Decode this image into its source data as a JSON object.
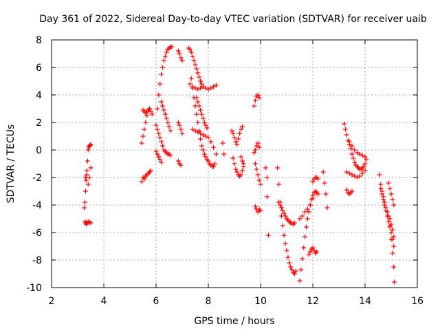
{
  "chart_data": {
    "type": "scatter",
    "title": "Day 361 of 2022, Sidereal Day-to-day VTEC variation (SDTVAR) for receiver uaib",
    "xlabel": "GPS time / hours",
    "ylabel": "SDTVAR / TECUs",
    "xlim": [
      2,
      16
    ],
    "ylim": [
      -10,
      8
    ],
    "xticks": [
      "2",
      "4",
      "6",
      "8",
      "10",
      "12",
      "14",
      "16"
    ],
    "yticks": [
      "-10",
      "-8",
      "-6",
      "-4",
      "-2",
      "0",
      "2",
      "4",
      "6",
      "8"
    ],
    "grid": true,
    "marker": "+",
    "color": "#ff0000",
    "series": [
      {
        "name": "s1",
        "x": [
          3.25,
          3.28,
          3.3,
          3.32,
          3.35,
          3.38,
          3.4,
          3.42,
          3.45,
          3.48,
          3.5
        ],
        "y": [
          -4.2,
          -3.8,
          -3.0,
          -2.2,
          -1.5,
          -0.8,
          0.0,
          0.2,
          0.3,
          0.35,
          0.4
        ]
      },
      {
        "name": "s2",
        "x": [
          3.28,
          3.3,
          3.33,
          3.36,
          3.4,
          3.45,
          3.5
        ],
        "y": [
          -5.2,
          -5.3,
          -5.4,
          -5.3,
          -5.2,
          -5.25,
          -5.3
        ]
      },
      {
        "name": "s3",
        "x": [
          3.3,
          3.35,
          3.4,
          3.45,
          3.5
        ],
        "y": [
          -2.0,
          -1.8,
          -2.5,
          -2.0,
          -1.3
        ]
      },
      {
        "name": "s4",
        "x": [
          5.45,
          5.5,
          5.55,
          5.6,
          5.65,
          5.7,
          5.75,
          5.8
        ],
        "y": [
          -2.3,
          -2.0,
          -2.1,
          -1.9,
          -1.8,
          -1.7,
          -1.6,
          -1.5
        ]
      },
      {
        "name": "s5",
        "x": [
          5.45,
          5.5,
          5.55,
          5.6,
          5.65,
          5.7,
          5.75
        ],
        "y": [
          0.5,
          1.0,
          1.5,
          2.0,
          2.5,
          2.8,
          3.0
        ]
      },
      {
        "name": "s6",
        "x": [
          5.5,
          5.55,
          5.6,
          5.65,
          5.7,
          5.75,
          5.8,
          5.85
        ],
        "y": [
          2.9,
          2.8,
          2.7,
          2.8,
          2.9,
          3.0,
          2.8,
          2.6
        ]
      },
      {
        "name": "s7",
        "x": [
          6.05,
          6.1,
          6.15,
          6.2,
          6.25,
          6.3,
          6.35,
          6.4,
          6.45,
          6.5,
          6.55,
          6.6
        ],
        "y": [
          3.0,
          4.0,
          4.8,
          5.5,
          6.0,
          6.5,
          6.8,
          7.1,
          7.3,
          7.4,
          7.5,
          7.5
        ]
      },
      {
        "name": "s8",
        "x": [
          6.0,
          6.05,
          6.1,
          6.15,
          6.2,
          6.25,
          6.3,
          6.35,
          6.4,
          6.45,
          6.5,
          6.55
        ],
        "y": [
          1.8,
          1.5,
          1.2,
          0.9,
          0.6,
          0.3,
          0.0,
          -0.1,
          -0.2,
          -0.3,
          -0.3,
          -0.4
        ]
      },
      {
        "name": "s9",
        "x": [
          6.2,
          6.25,
          6.3,
          6.35,
          6.4,
          6.45,
          6.5,
          6.55
        ],
        "y": [
          3.5,
          3.2,
          2.9,
          2.6,
          2.3,
          2.0,
          1.7,
          1.4
        ]
      },
      {
        "name": "s10",
        "x": [
          6.0,
          6.05,
          6.1,
          6.15,
          6.2
        ],
        "y": [
          -0.1,
          -0.3,
          -0.5,
          -0.7,
          -0.9
        ]
      },
      {
        "name": "s11",
        "x": [
          6.85,
          6.9,
          6.95,
          7.0
        ],
        "y": [
          7.2,
          7.0,
          6.7,
          6.5
        ]
      },
      {
        "name": "s12",
        "x": [
          6.85,
          6.9,
          6.95,
          7.0
        ],
        "y": [
          2.0,
          1.8,
          1.5,
          1.2
        ]
      },
      {
        "name": "s13",
        "x": [
          6.85,
          6.9,
          6.95
        ],
        "y": [
          -0.8,
          -1.0,
          -1.1
        ]
      },
      {
        "name": "s14",
        "x": [
          7.25,
          7.3,
          7.35,
          7.4,
          7.45,
          7.5,
          7.55,
          7.6,
          7.65,
          7.7,
          7.75
        ],
        "y": [
          7.4,
          7.3,
          7.1,
          6.8,
          6.5,
          6.2,
          5.9,
          5.6,
          5.3,
          5.0,
          4.8
        ]
      },
      {
        "name": "s15",
        "x": [
          7.3,
          7.4,
          7.5,
          7.6,
          7.7,
          7.8,
          7.9,
          8.0,
          8.1,
          8.2,
          8.3
        ],
        "y": [
          4.8,
          4.6,
          4.5,
          4.4,
          4.5,
          4.6,
          4.5,
          4.4,
          4.5,
          4.6,
          4.7
        ]
      },
      {
        "name": "s16",
        "x": [
          7.35,
          7.4,
          7.45,
          7.5,
          7.55,
          7.6,
          7.65,
          7.7,
          7.75,
          7.8,
          7.85,
          7.9,
          7.95,
          8.0,
          8.05,
          8.1,
          8.15,
          8.2,
          8.25
        ],
        "y": [
          5.2,
          4.5,
          3.8,
          3.2,
          2.6,
          2.0,
          1.4,
          0.8,
          0.3,
          0.0,
          -0.3,
          -0.5,
          -0.7,
          -0.8,
          -1.0,
          -1.1,
          -1.2,
          -1.2,
          -1.0
        ]
      },
      {
        "name": "s17",
        "x": [
          7.4,
          7.5,
          7.6,
          7.7,
          7.8,
          7.9,
          8.0,
          8.1,
          8.2,
          8.3
        ],
        "y": [
          1.5,
          1.4,
          1.3,
          1.2,
          1.1,
          1.0,
          0.9,
          0.6,
          0.2,
          -0.3
        ]
      },
      {
        "name": "s18",
        "x": [
          7.55,
          7.6,
          7.65,
          7.7,
          7.75,
          7.8,
          7.85,
          7.9,
          7.95
        ],
        "y": [
          3.8,
          3.5,
          3.2,
          2.9,
          2.6,
          2.3,
          2.0,
          1.8,
          1.6
        ]
      },
      {
        "name": "s19",
        "x": [
          8.55,
          8.6
        ],
        "y": [
          0.5,
          -0.3
        ]
      },
      {
        "name": "s20",
        "x": [
          8.9,
          8.95,
          9.0,
          9.05,
          9.1,
          9.15,
          9.2,
          9.25,
          9.3
        ],
        "y": [
          1.4,
          1.2,
          0.9,
          0.6,
          0.4,
          0.8,
          1.2,
          1.5,
          1.7
        ]
      },
      {
        "name": "s21",
        "x": [
          8.95,
          9.0,
          9.05,
          9.1,
          9.15,
          9.2,
          9.25,
          9.3,
          9.35
        ],
        "y": [
          -0.6,
          -1.0,
          -1.4,
          -1.6,
          -1.8,
          -1.9,
          -1.8,
          -1.5,
          -1.0
        ]
      },
      {
        "name": "s22",
        "x": [
          9.25,
          9.3,
          9.35
        ],
        "y": [
          -0.5,
          -0.8,
          -1.2
        ]
      },
      {
        "name": "s23",
        "x": [
          9.75,
          9.8,
          9.85,
          9.9,
          9.95
        ],
        "y": [
          3.2,
          3.6,
          3.9,
          4.0,
          3.8
        ]
      },
      {
        "name": "s24",
        "x": [
          9.75,
          9.8,
          9.85,
          9.9,
          9.95
        ],
        "y": [
          -0.2,
          0.0,
          0.3,
          0.5,
          0.2
        ]
      },
      {
        "name": "s25",
        "x": [
          9.8,
          9.85,
          9.9,
          9.95,
          10.0
        ],
        "y": [
          -1.0,
          -1.4,
          -1.8,
          -2.2,
          -2.5
        ]
      },
      {
        "name": "s26",
        "x": [
          9.8,
          9.85,
          9.9,
          9.95,
          10.0
        ],
        "y": [
          -4.1,
          -4.3,
          -4.5,
          -4.3,
          -4.4
        ]
      },
      {
        "name": "s27",
        "x": [
          10.2,
          10.25
        ],
        "y": [
          -1.3,
          -2.0
        ]
      },
      {
        "name": "s28",
        "x": [
          10.25,
          10.3
        ],
        "y": [
          -3.4,
          -6.2
        ]
      },
      {
        "name": "s29",
        "x": [
          10.65,
          10.7,
          10.75,
          10.8,
          10.85,
          10.9,
          10.95,
          11.0,
          11.05,
          11.1,
          11.15,
          11.2,
          11.25,
          11.3,
          11.35
        ],
        "y": [
          -1.3,
          -2.5,
          -3.8,
          -4.8,
          -5.5,
          -6.2,
          -6.8,
          -7.3,
          -7.8,
          -8.2,
          -8.5,
          -8.7,
          -8.9,
          -9.0,
          -8.8
        ]
      },
      {
        "name": "s30",
        "x": [
          10.7,
          10.75,
          10.8,
          10.85,
          10.9,
          10.95,
          11.0,
          11.05,
          11.1,
          11.15,
          11.2,
          11.25,
          11.3
        ],
        "y": [
          -3.8,
          -4.0,
          -4.2,
          -4.4,
          -4.6,
          -4.8,
          -5.0,
          -5.1,
          -5.2,
          -5.3,
          -5.3,
          -5.4,
          -5.3
        ]
      },
      {
        "name": "s31",
        "x": [
          11.5,
          11.55,
          11.6,
          11.65,
          11.7,
          11.75,
          11.8,
          11.85,
          11.9,
          11.95,
          12.0,
          12.05,
          12.1,
          12.15,
          12.2
        ],
        "y": [
          -9.5,
          -8.7,
          -7.9,
          -7.1,
          -6.3,
          -5.6,
          -5.0,
          -4.5,
          -4.0,
          -3.6,
          -3.3,
          -3.1,
          -3.0,
          -3.1,
          -3.2
        ]
      },
      {
        "name": "s32",
        "x": [
          11.5,
          11.6,
          11.7,
          11.8,
          11.9,
          12.0,
          12.1
        ],
        "y": [
          -5.0,
          -4.8,
          -4.5,
          -4.3,
          -4.0,
          -3.5,
          -3.0
        ]
      },
      {
        "name": "s33",
        "x": [
          11.85,
          11.9,
          11.95,
          12.0,
          12.05,
          12.1,
          12.15
        ],
        "y": [
          -7.6,
          -7.4,
          -7.2,
          -7.1,
          -7.3,
          -7.5,
          -7.4
        ]
      },
      {
        "name": "s34",
        "x": [
          12.0,
          12.05,
          12.1,
          12.15,
          12.2
        ],
        "y": [
          -2.3,
          -2.1,
          -2.0,
          -2.0,
          -2.1
        ]
      },
      {
        "name": "s35",
        "x": [
          12.4,
          12.45,
          12.5,
          12.55
        ],
        "y": [
          -1.6,
          -2.4,
          -3.2,
          -4.2
        ]
      },
      {
        "name": "s36",
        "x": [
          13.2,
          13.25,
          13.3,
          13.35,
          13.4,
          13.45,
          13.5,
          13.55,
          13.6,
          13.65,
          13.7,
          13.75,
          13.8,
          13.85,
          13.9,
          13.95,
          14.0,
          14.05
        ],
        "y": [
          1.9,
          1.5,
          1.1,
          0.7,
          0.4,
          0.1,
          -0.3,
          -0.6,
          -0.9,
          -1.1,
          -1.2,
          -1.3,
          -1.4,
          -1.4,
          -1.3,
          -1.2,
          -1.0,
          -0.7
        ]
      },
      {
        "name": "s37",
        "x": [
          13.4,
          13.5,
          13.6,
          13.7,
          13.8,
          13.9,
          14.0
        ],
        "y": [
          0.6,
          0.3,
          0.0,
          -0.2,
          -0.3,
          -0.4,
          -0.5
        ]
      },
      {
        "name": "s38",
        "x": [
          13.3,
          13.4,
          13.5,
          13.6,
          13.7,
          13.8,
          13.9,
          14.0
        ],
        "y": [
          -1.6,
          -1.7,
          -1.8,
          -1.9,
          -2.0,
          -1.9,
          -1.7,
          -1.5
        ]
      },
      {
        "name": "s39",
        "x": [
          13.3,
          13.35,
          13.4,
          13.45,
          13.5
        ],
        "y": [
          -2.9,
          -3.1,
          -3.2,
          -3.1,
          -3.0
        ]
      },
      {
        "name": "s40",
        "x": [
          14.55,
          14.6,
          14.65,
          14.7,
          14.75,
          14.8,
          14.85,
          14.9,
          14.95,
          15.0,
          15.05,
          15.1
        ],
        "y": [
          -1.8,
          -2.5,
          -3.0,
          -3.4,
          -3.8,
          -4.2,
          -4.5,
          -4.8,
          -5.0,
          -5.4,
          -5.8,
          -6.3
        ]
      },
      {
        "name": "s41",
        "x": [
          14.6,
          14.65,
          14.7,
          14.75,
          14.8,
          14.85,
          14.9,
          14.95,
          15.0,
          15.05,
          15.1
        ],
        "y": [
          -2.8,
          -3.2,
          -3.6,
          -4.0,
          -4.4,
          -4.8,
          -5.2,
          -5.6,
          -6.0,
          -6.5,
          -7.0
        ]
      },
      {
        "name": "s42",
        "x": [
          14.9,
          14.95,
          15.0,
          15.05,
          15.1
        ],
        "y": [
          -2.4,
          -2.8,
          -3.2,
          -3.6,
          -4.0
        ]
      },
      {
        "name": "s43",
        "x": [
          14.95,
          15.0,
          15.05,
          15.1,
          15.12
        ],
        "y": [
          -5.5,
          -6.5,
          -7.5,
          -8.5,
          -9.6
        ]
      }
    ]
  }
}
